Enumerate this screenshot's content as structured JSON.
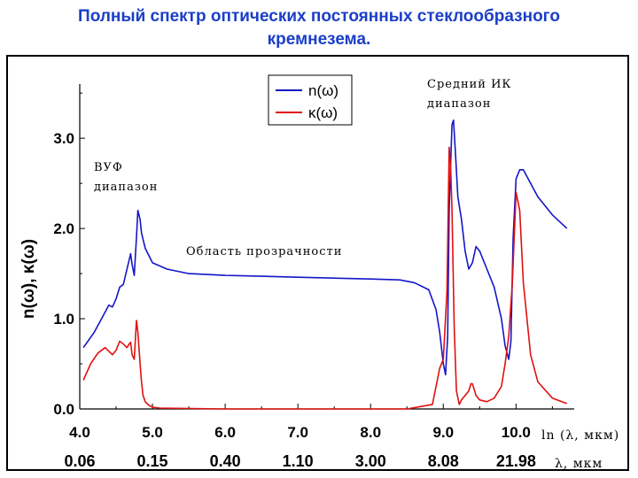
{
  "page": {
    "title_line1": "Полный спектр оптических постоянных стеклообразного",
    "title_line2": "кремнезема."
  },
  "colors": {
    "title": "#1b3fc7",
    "n_series": "#1515c8",
    "k_series": "#e01010"
  },
  "chart_data": {
    "type": "line",
    "title": "Полный спектр оптических постоянных стеклообразного кремнезема.",
    "ylabel": "n(ω), κ(ω)",
    "xlabel_primary": "ln (λ, мкм)",
    "xlabel_secondary": "λ, мкм",
    "xlim": [
      4.0,
      10.8
    ],
    "ylim": [
      0.0,
      3.6
    ],
    "x_ticks": [
      "4.0",
      "5.0",
      "6.0",
      "7.0",
      "8.0",
      "9.0",
      "10.0"
    ],
    "x_ticks_secondary": [
      "0.06",
      "0.15",
      "0.40",
      "1.10",
      "3.00",
      "8.08",
      "21.98"
    ],
    "y_ticks": [
      "0.0",
      "1.0",
      "2.0",
      "3.0"
    ],
    "grid": false,
    "legend_position": "top-center",
    "annotations": [
      "ВУФ",
      "диапазон",
      "Область прозрачности",
      "Средний ИК",
      "диапазон"
    ],
    "series": [
      {
        "name": "n(ω)",
        "x": [
          4.05,
          4.2,
          4.3,
          4.4,
          4.45,
          4.5,
          4.55,
          4.6,
          4.65,
          4.7,
          4.72,
          4.75,
          4.78,
          4.8,
          4.83,
          4.85,
          4.9,
          5.0,
          5.2,
          5.5,
          6.0,
          6.5,
          7.0,
          7.5,
          8.0,
          8.4,
          8.6,
          8.8,
          8.9,
          8.95,
          9.0,
          9.03,
          9.06,
          9.08,
          9.1,
          9.12,
          9.14,
          9.17,
          9.2,
          9.25,
          9.3,
          9.35,
          9.4,
          9.45,
          9.5,
          9.6,
          9.7,
          9.8,
          9.85,
          9.9,
          9.93,
          9.96,
          10.0,
          10.05,
          10.1,
          10.2,
          10.3,
          10.5,
          10.7
        ],
        "y": [
          0.68,
          0.85,
          1.0,
          1.15,
          1.13,
          1.22,
          1.35,
          1.38,
          1.55,
          1.72,
          1.6,
          1.48,
          1.9,
          2.2,
          2.1,
          1.95,
          1.78,
          1.62,
          1.55,
          1.5,
          1.48,
          1.47,
          1.46,
          1.45,
          1.44,
          1.43,
          1.4,
          1.32,
          1.1,
          0.85,
          0.5,
          0.38,
          0.8,
          2.2,
          2.7,
          3.15,
          3.2,
          2.8,
          2.35,
          2.1,
          1.75,
          1.55,
          1.62,
          1.8,
          1.75,
          1.55,
          1.35,
          1.0,
          0.7,
          0.55,
          0.75,
          1.9,
          2.55,
          2.65,
          2.65,
          2.5,
          2.35,
          2.15,
          2.0
        ]
      },
      {
        "name": "κ(ω)",
        "x": [
          4.05,
          4.15,
          4.25,
          4.35,
          4.45,
          4.5,
          4.55,
          4.6,
          4.65,
          4.68,
          4.7,
          4.72,
          4.75,
          4.78,
          4.8,
          4.83,
          4.85,
          4.87,
          4.9,
          4.95,
          5.0,
          5.1,
          6.0,
          8.5,
          8.85,
          8.9,
          8.95,
          9.0,
          9.05,
          9.08,
          9.1,
          9.12,
          9.15,
          9.18,
          9.22,
          9.25,
          9.3,
          9.35,
          9.38,
          9.4,
          9.45,
          9.5,
          9.6,
          9.7,
          9.8,
          9.85,
          9.9,
          9.95,
          10.0,
          10.05,
          10.1,
          10.2,
          10.3,
          10.5,
          10.7
        ],
        "y": [
          0.32,
          0.5,
          0.62,
          0.68,
          0.6,
          0.65,
          0.75,
          0.72,
          0.68,
          0.72,
          0.74,
          0.6,
          0.55,
          0.98,
          0.85,
          0.5,
          0.3,
          0.15,
          0.08,
          0.04,
          0.02,
          0.01,
          0.0,
          0.0,
          0.05,
          0.25,
          0.45,
          0.55,
          1.3,
          2.9,
          2.7,
          2.2,
          0.9,
          0.2,
          0.05,
          0.1,
          0.15,
          0.2,
          0.28,
          0.28,
          0.15,
          0.1,
          0.08,
          0.12,
          0.25,
          0.5,
          0.8,
          1.4,
          2.4,
          2.2,
          1.4,
          0.6,
          0.3,
          0.12,
          0.06
        ]
      }
    ]
  }
}
